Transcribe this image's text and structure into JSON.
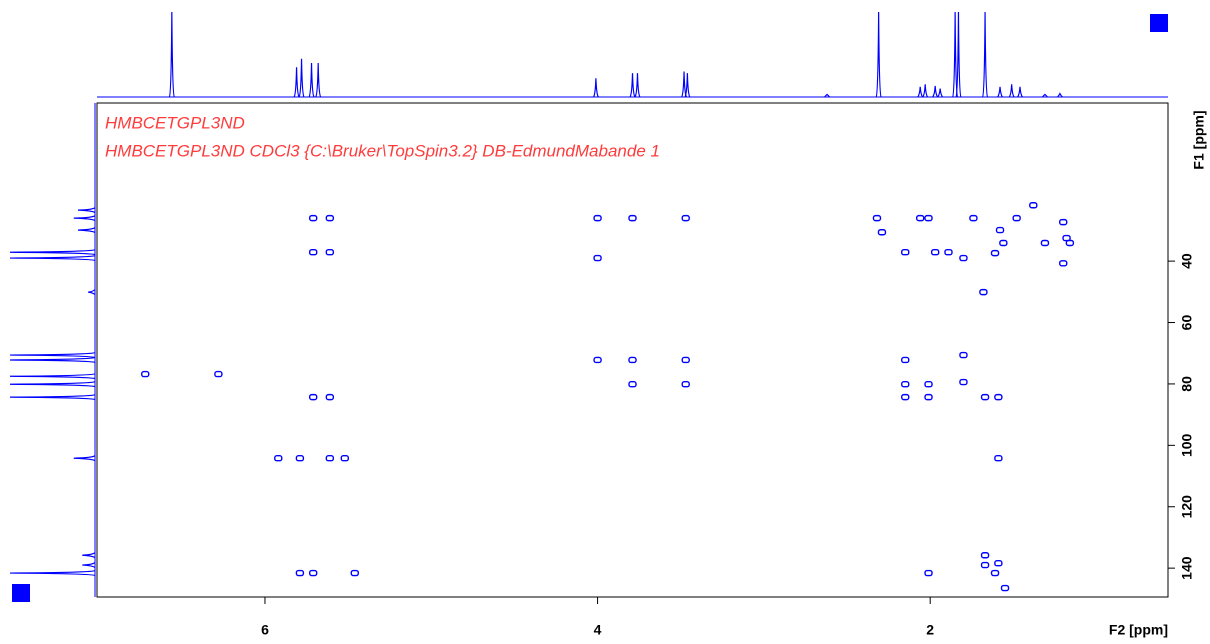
{
  "chart_data": {
    "type": "contour",
    "annotations": [
      "HMBCETGPL3ND",
      "HMBCETGPL3ND CDCl3 {C:\\Bruker\\TopSpin3.2} DB-EdmundMabande 1"
    ],
    "xlabel": "F2 [ppm]",
    "ylabel": "F1 [ppm]",
    "color": "#0000ff",
    "annotation_color": "#ff3b3b",
    "xlim": [
      7.01,
      0.57
    ],
    "ylim": [
      -11.5,
      149.4
    ],
    "xticks": [
      6,
      4,
      2
    ],
    "yticks": [
      40,
      60,
      80,
      100,
      120,
      140
    ],
    "peaks": {
      "x": [
        5.71,
        5.61,
        5.71,
        5.61,
        4.0,
        3.79,
        3.47,
        4.0,
        4.0,
        3.79,
        3.47,
        3.79,
        3.47,
        6.72,
        6.28,
        5.71,
        5.61,
        5.92,
        5.79,
        5.61,
        5.52,
        5.79,
        5.71,
        5.46,
        2.32,
        2.29,
        2.06,
        2.01,
        1.74,
        1.48,
        2.15,
        1.97,
        1.89,
        1.8,
        1.68,
        1.58,
        1.56,
        1.61,
        1.38,
        1.31,
        1.2,
        1.18,
        1.16,
        1.2,
        2.15,
        1.8,
        1.8,
        2.15,
        2.01,
        2.15,
        2.01,
        1.67,
        1.59,
        1.59,
        2.01,
        1.67,
        1.67,
        1.59,
        1.61,
        1.55
      ],
      "y": [
        26.0,
        26.0,
        37.1,
        37.1,
        26.0,
        26.0,
        26.0,
        39.0,
        72.2,
        72.2,
        72.2,
        80.1,
        80.1,
        76.8,
        76.8,
        84.3,
        84.3,
        104.2,
        104.2,
        104.2,
        104.2,
        141.6,
        141.6,
        141.6,
        26.0,
        30.6,
        26.0,
        26.0,
        26.0,
        26.0,
        37.1,
        37.1,
        37.1,
        39.0,
        50.1,
        29.9,
        34.1,
        37.4,
        21.8,
        34.1,
        27.3,
        32.5,
        34.1,
        40.7,
        72.2,
        70.6,
        79.4,
        80.1,
        80.1,
        84.3,
        84.3,
        84.3,
        84.3,
        104.2,
        141.6,
        135.8,
        139.0,
        138.4,
        141.6,
        146.5
      ]
    },
    "top_projection": {
      "x": [
        6.56,
        5.81,
        5.78,
        5.72,
        5.68,
        4.01,
        3.79,
        3.76,
        3.48,
        3.46,
        2.62,
        2.31,
        2.06,
        2.03,
        1.97,
        1.94,
        1.85,
        1.83,
        1.67,
        1.58,
        1.51,
        1.46,
        1.31,
        1.22
      ],
      "values": [
        100,
        35,
        45,
        40,
        40,
        22,
        28,
        28,
        30,
        28,
        3,
        100,
        12,
        15,
        13,
        10,
        100,
        100,
        100,
        12,
        15,
        12,
        3,
        4
      ]
    },
    "left_projection": {
      "y": [
        23.4,
        26.0,
        29.9,
        37.1,
        39.0,
        50.1,
        70.6,
        72.2,
        77.5,
        80.1,
        84.3,
        104.2,
        135.8,
        139.0,
        141.6
      ],
      "values": [
        20,
        25,
        20,
        100,
        100,
        8,
        100,
        100,
        100,
        100,
        100,
        25,
        15,
        15,
        100
      ]
    }
  }
}
